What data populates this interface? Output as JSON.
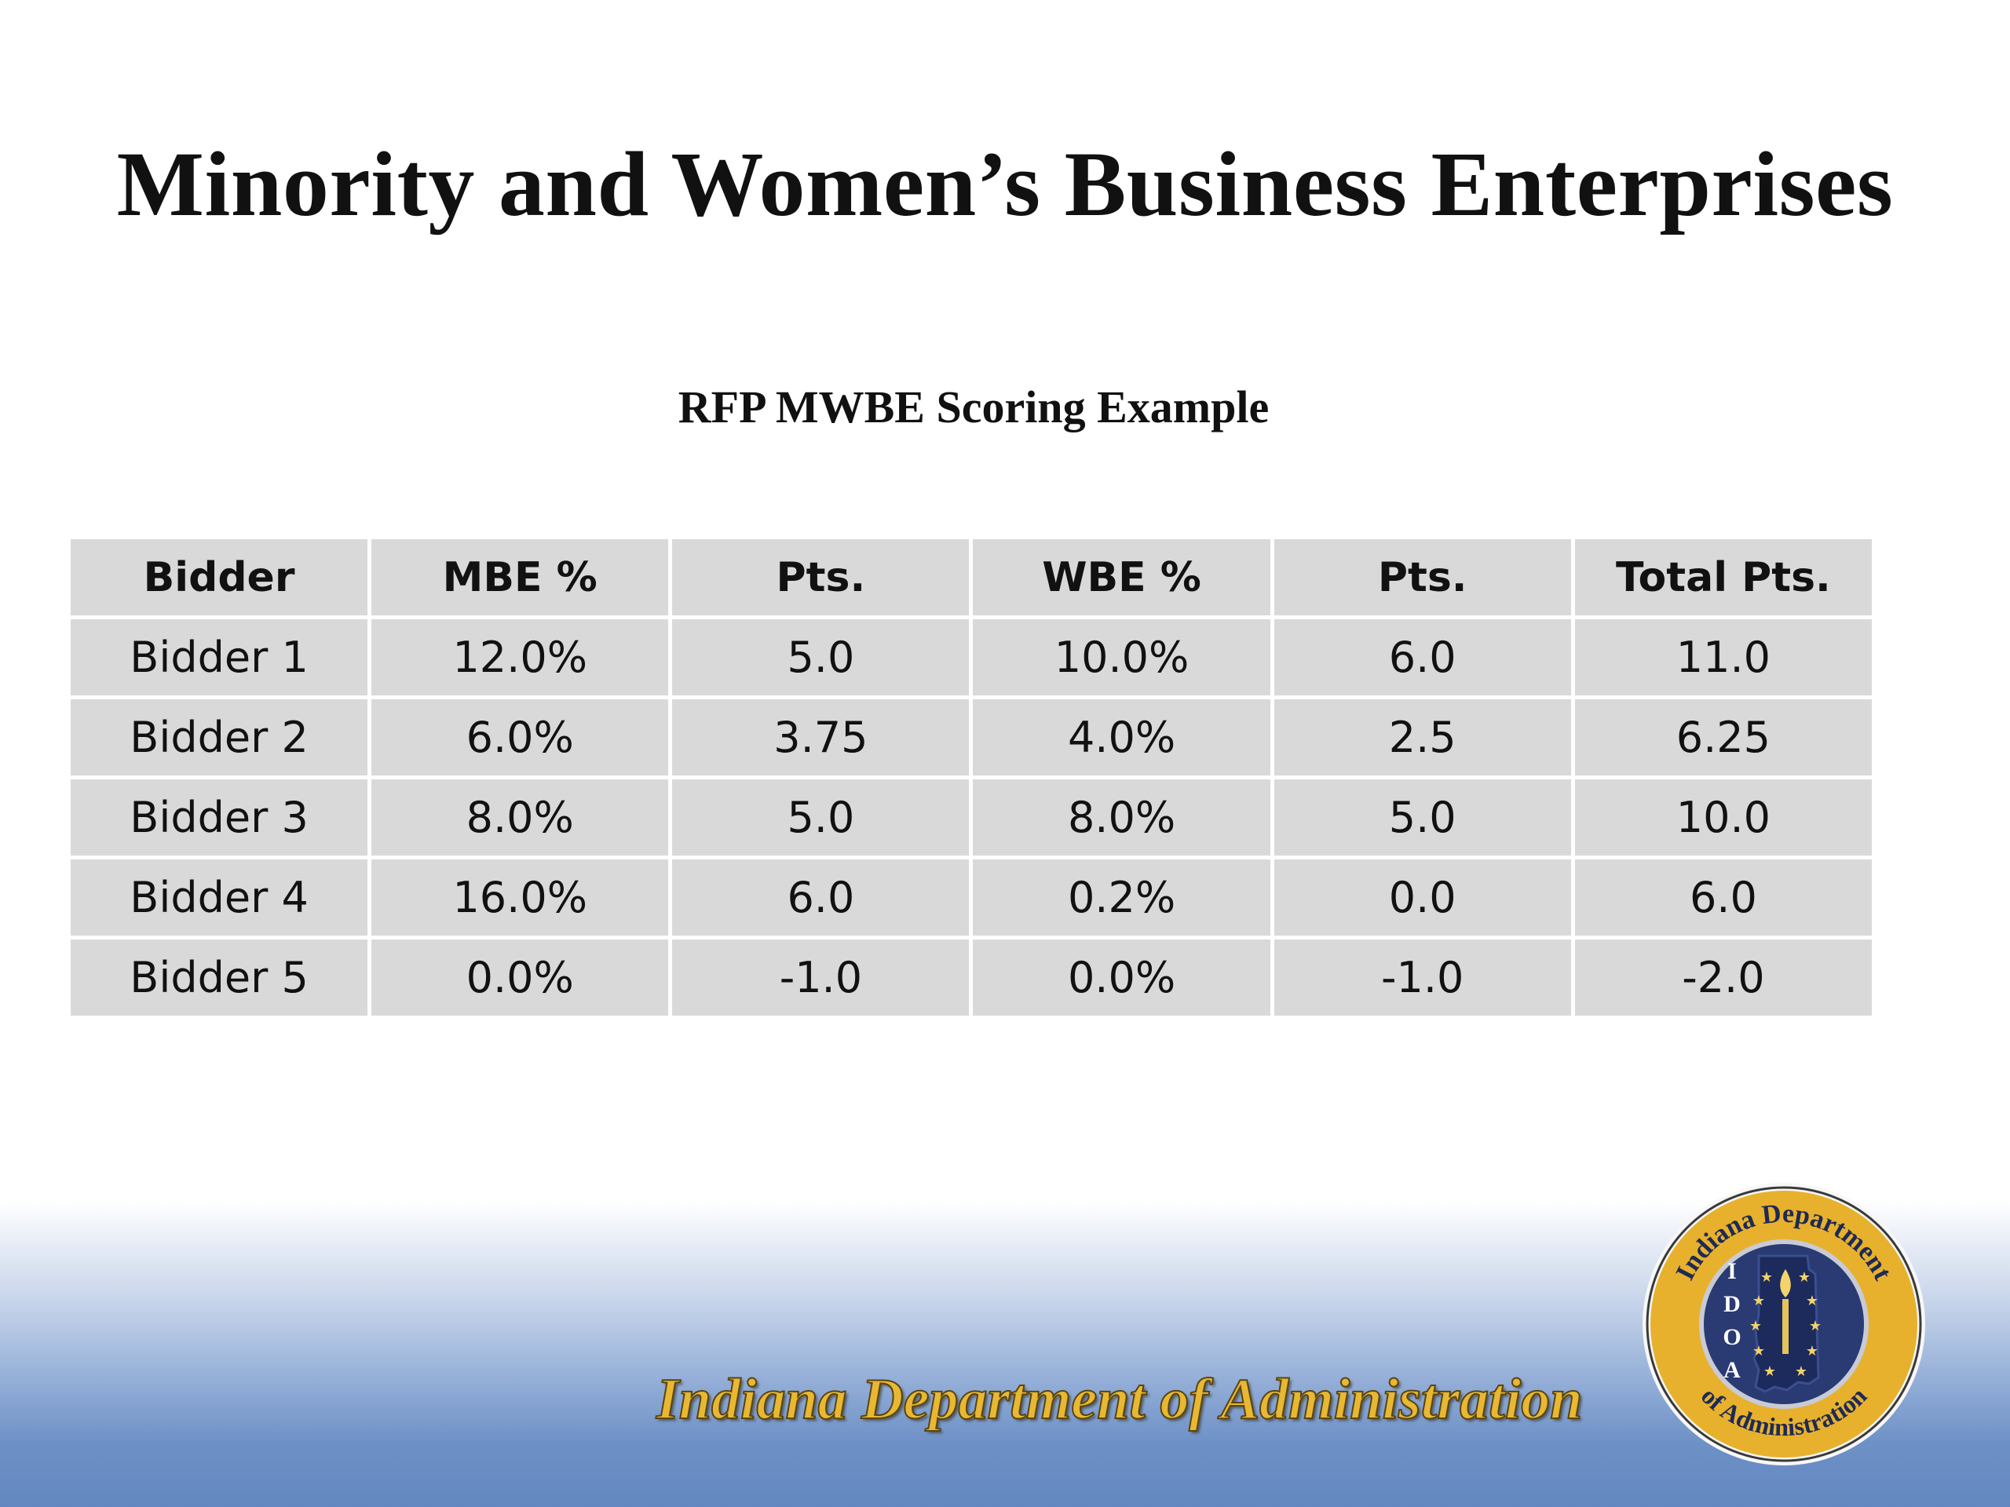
{
  "slide": {
    "title": "Minority and Women’s Business Enterprises",
    "subtitle": "RFP MWBE Scoring Example"
  },
  "table": {
    "headers": [
      "Bidder",
      "MBE %",
      "Pts.",
      "WBE %",
      "Pts.",
      "Total Pts."
    ],
    "rows": [
      [
        "Bidder 1",
        "12.0%",
        "5.0",
        "10.0%",
        "6.0",
        "11.0"
      ],
      [
        "Bidder 2",
        "6.0%",
        "3.75",
        "4.0%",
        "2.5",
        "6.25"
      ],
      [
        "Bidder 3",
        "8.0%",
        "5.0",
        "8.0%",
        "5.0",
        "10.0"
      ],
      [
        "Bidder 4",
        "16.0%",
        "6.0",
        "0.2%",
        "0.0",
        "6.0"
      ],
      [
        "Bidder 5",
        "0.0%",
        "-1.0",
        "0.0%",
        "-1.0",
        "-2.0"
      ]
    ]
  },
  "footer": {
    "organization": "Indiana Department of Administration"
  },
  "seal": {
    "top_text": "Indiana Department",
    "bottom_text": "of Administration",
    "letters": [
      "I",
      "D",
      "O",
      "A"
    ],
    "colors": {
      "ring": "#e8b12d",
      "center": "#2a3a72",
      "stars": "#f1d26a"
    }
  }
}
